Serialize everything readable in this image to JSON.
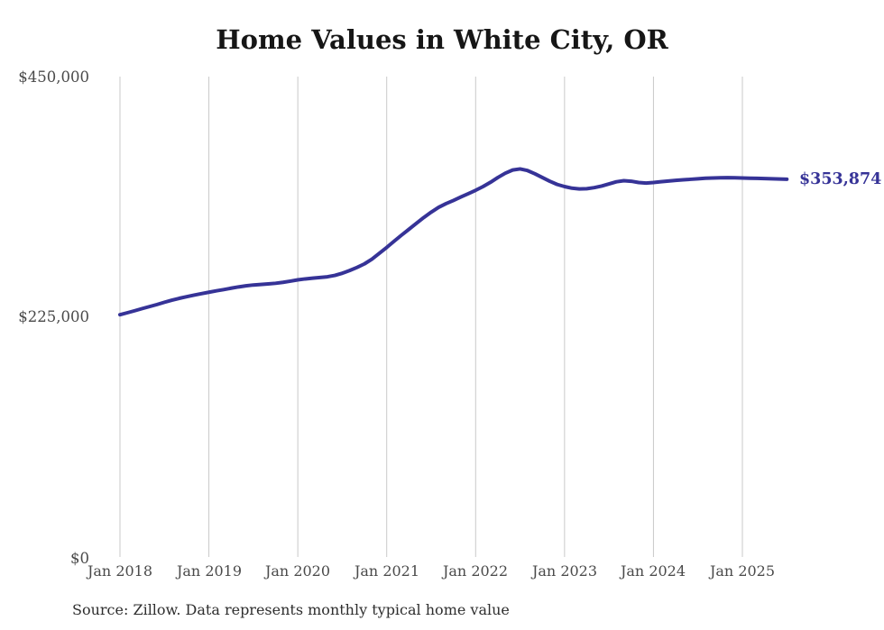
{
  "page": {
    "background": "#ffffff"
  },
  "chart": {
    "title": "Home Values in White City, OR",
    "end_label": "$353,874",
    "source_note": "Source: Zillow. Data represents monthly typical home value",
    "colors": {
      "line": "#363397",
      "end_label_text": "#363397",
      "grid": "#c9c9c9",
      "title_text": "#161616",
      "axis_text": "#4a4a4a",
      "source_text": "#2e2e2e"
    }
  },
  "chart_data": {
    "type": "line",
    "title": "Home Values in White City, OR",
    "xlabel": "",
    "ylabel": "",
    "ylim": [
      0,
      450000
    ],
    "y_tick_labels": [
      "$450,000",
      "$225,000",
      "$0"
    ],
    "y_tick_values": [
      450000,
      225000,
      0
    ],
    "x_tick_labels": [
      "Jan 2018",
      "Jan 2019",
      "Jan 2020",
      "Jan 2021",
      "Jan 2022",
      "Jan 2023",
      "Jan 2024",
      "Jan 2025"
    ],
    "grid": "vertical-only",
    "legend_position": "none",
    "x_start_month": "2018-01",
    "x_end_month": "2025-07",
    "final_value": 353874,
    "series": [
      {
        "name": "Monthly typical home value",
        "values": [
          227000,
          228800,
          230700,
          232700,
          234600,
          236500,
          238600,
          240600,
          242300,
          243800,
          245300,
          246700,
          248000,
          249300,
          250500,
          251800,
          253000,
          254000,
          254800,
          255300,
          255800,
          256400,
          257300,
          258400,
          259600,
          260500,
          261200,
          261800,
          262500,
          263800,
          265800,
          268400,
          271300,
          274600,
          279000,
          284500,
          290000,
          295800,
          301500,
          307000,
          312500,
          318000,
          323000,
          327500,
          331000,
          334000,
          337200,
          340300,
          343500,
          347000,
          351000,
          355500,
          359500,
          362500,
          363500,
          362000,
          359000,
          355500,
          352000,
          349000,
          347000,
          345500,
          344800,
          345000,
          346000,
          347500,
          349500,
          351500,
          352500,
          352000,
          350800,
          350300,
          350800,
          351500,
          352200,
          352800,
          353300,
          353800,
          354300,
          354800,
          355000,
          355200,
          355300,
          355200,
          355000,
          354800,
          354700,
          354500,
          354300,
          354100,
          353874
        ]
      }
    ]
  }
}
